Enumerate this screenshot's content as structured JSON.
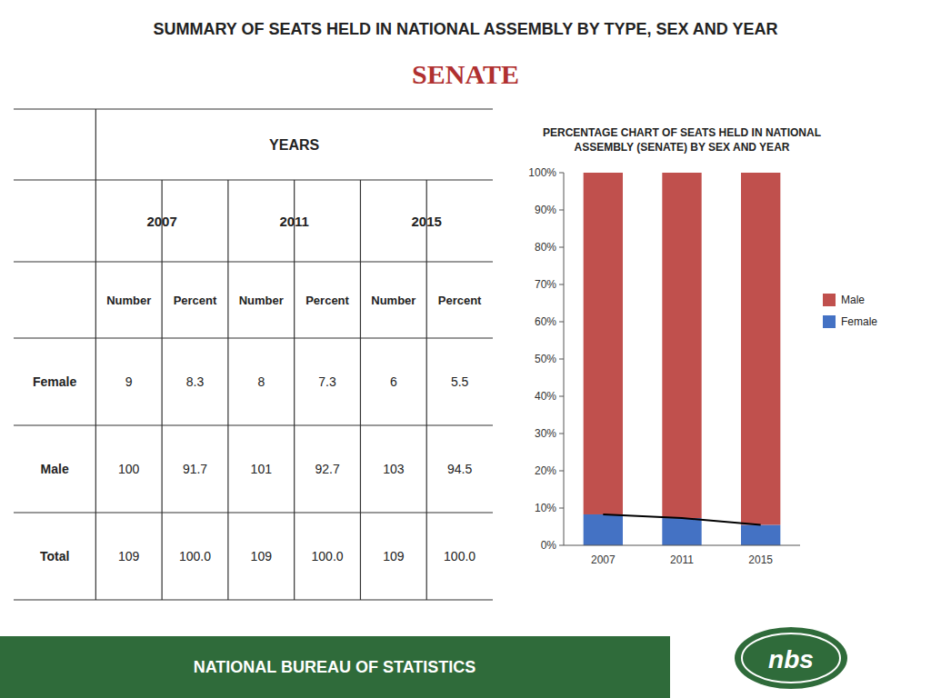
{
  "title": "SUMMARY OF SEATS HELD IN NATIONAL ASSEMBLY BY TYPE, SEX AND YEAR",
  "subtitle": "SENATE",
  "annotations": [
    "NATIONAL BUREAU OF STATISTICS",
    "nbs"
  ],
  "chart_data": [
    {
      "type": "table",
      "header": "YEARS",
      "column_groups": [
        "2007",
        "2011",
        "2015"
      ],
      "columns": [
        "Number",
        "Percent",
        "Number",
        "Percent",
        "Number",
        "Percent"
      ],
      "row_labels": [
        "Female",
        "Male",
        "Total"
      ],
      "cells": [
        [
          "9",
          "8.3",
          "8",
          "7.3",
          "6",
          "5.5"
        ],
        [
          "100",
          "91.7",
          "101",
          "92.7",
          "103",
          "94.5"
        ],
        [
          "109",
          "100.0",
          "109",
          "100.0",
          "109",
          "100.0"
        ]
      ]
    },
    {
      "type": "bar",
      "title": "PERCENTAGE CHART OF SEATS HELD IN NATIONAL\nASSEMBLY (SENATE) BY SEX AND YEAR",
      "stacked": true,
      "categories": [
        "2007",
        "2011",
        "2015"
      ],
      "series": [
        {
          "name": "Female",
          "color": "#4472C4",
          "values": [
            8.3,
            7.3,
            5.5
          ]
        },
        {
          "name": "Male",
          "color": "#C0504D",
          "values": [
            91.7,
            92.7,
            94.5
          ]
        },
        {
          "type": "line",
          "color": "#000000",
          "values": [
            8.3,
            7.3,
            5.5
          ]
        }
      ],
      "ylim": [
        0,
        100
      ],
      "yticks": [
        {
          "value": 0,
          "label": "0%"
        },
        {
          "value": 10,
          "label": "10%"
        },
        {
          "value": 20,
          "label": "20%"
        },
        {
          "value": 30,
          "label": "30%"
        },
        {
          "value": 40,
          "label": "40%"
        },
        {
          "value": 50,
          "label": "50%"
        },
        {
          "value": 60,
          "label": "60%"
        },
        {
          "value": 70,
          "label": "70%"
        },
        {
          "value": 80,
          "label": "80%"
        },
        {
          "value": 90,
          "label": "90%"
        },
        {
          "value": 100,
          "label": "100%"
        }
      ],
      "grid": false,
      "legend": "right"
    }
  ]
}
